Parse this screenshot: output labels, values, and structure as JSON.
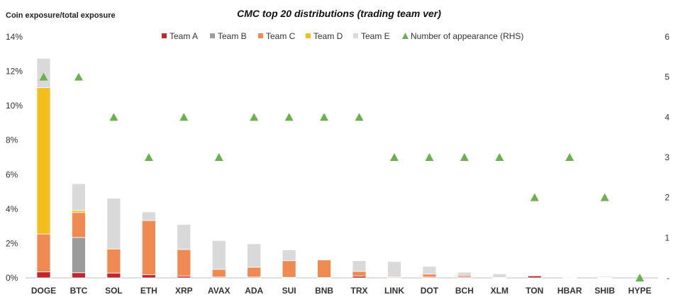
{
  "chart_data": {
    "type": "bar",
    "stacked": true,
    "title": "CMC top 20 distributions (trading team ver)",
    "ylabel": "Coin exposure/total exposure",
    "ylim": [
      0,
      14
    ],
    "y_ticks": [
      "0%",
      "2%",
      "4%",
      "6%",
      "8%",
      "10%",
      "12%",
      "14%"
    ],
    "y2_ticks": [
      "-",
      "1",
      "2",
      "3",
      "4",
      "5",
      "6"
    ],
    "y2lim": [
      0,
      6
    ],
    "grid": false,
    "legend_position": "top",
    "categories": [
      "DOGE",
      "BTC",
      "SOL",
      "ETH",
      "XRP",
      "AVAX",
      "ADA",
      "SUI",
      "BNB",
      "TRX",
      "LINK",
      "DOT",
      "BCH",
      "XLM",
      "TON",
      "HBAR",
      "SHIB",
      "HYPE"
    ],
    "series": [
      {
        "name": "Team A",
        "color": "#c0282d",
        "values": [
          0.35,
          0.3,
          0.28,
          0.18,
          0.1,
          0.05,
          0.05,
          0.03,
          0.02,
          0.1,
          0.0,
          0.05,
          0.05,
          0.0,
          0.12,
          0.02,
          0.02,
          0.0
        ]
      },
      {
        "name": "Team B",
        "color": "#9b9b9b",
        "values": [
          0.0,
          2.05,
          0.0,
          0.0,
          0.0,
          0.0,
          0.0,
          0.0,
          0.0,
          0.0,
          0.0,
          0.0,
          0.0,
          0.0,
          0.0,
          0.0,
          0.0,
          0.0
        ]
      },
      {
        "name": "Team C",
        "color": "#ee8a52",
        "values": [
          2.2,
          1.45,
          1.4,
          3.15,
          1.55,
          0.45,
          0.57,
          0.97,
          1.02,
          0.28,
          0.05,
          0.17,
          0.1,
          0.02,
          0.02,
          0.04,
          0.02,
          0.0
        ]
      },
      {
        "name": "Team D",
        "color": "#f2be1e",
        "values": [
          8.5,
          0.12,
          0.0,
          0.0,
          0.0,
          0.0,
          0.0,
          0.0,
          0.0,
          0.0,
          0.0,
          0.0,
          0.0,
          0.0,
          0.0,
          0.0,
          0.0,
          0.0
        ]
      },
      {
        "name": "Team E",
        "color": "#d9d9d9",
        "values": [
          1.7,
          1.55,
          2.95,
          0.5,
          1.45,
          1.67,
          1.36,
          0.62,
          0.0,
          0.62,
          0.9,
          0.45,
          0.18,
          0.22,
          0.03,
          0.02,
          0.06,
          0.0
        ]
      }
    ],
    "line_series": {
      "name": "Number of appearance (RHS)",
      "color": "#6ab04c",
      "marker": "triangle",
      "axis": "right",
      "values": [
        5,
        5,
        4,
        3,
        4,
        3,
        4,
        4,
        4,
        4,
        3,
        3,
        3,
        3,
        2,
        3,
        2,
        0
      ]
    }
  }
}
